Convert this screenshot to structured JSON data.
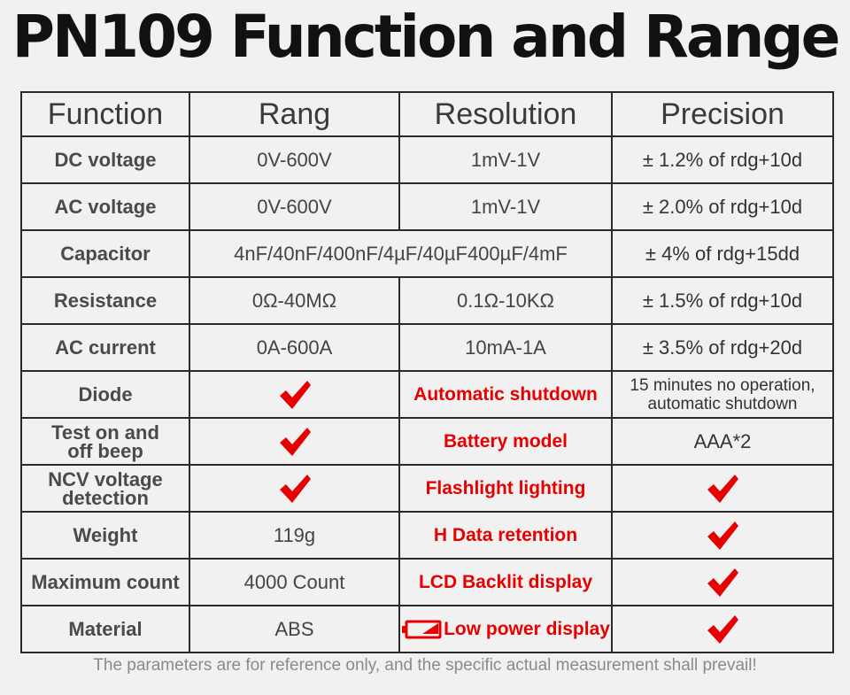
{
  "title": "PN109 Function and Range",
  "headers": {
    "function": "Function",
    "range": "Rang",
    "resolution": "Resolution",
    "precision": "Precision"
  },
  "rows": {
    "dc_voltage": {
      "function": "DC voltage",
      "range": "0V-600V",
      "resolution": "1mV-1V",
      "precision": "± 1.2% of rdg+10d"
    },
    "ac_voltage": {
      "function": "AC voltage",
      "range": "0V-600V",
      "resolution": "1mV-1V",
      "precision": "± 2.0% of rdg+10d"
    },
    "capacitor": {
      "function": "Capacitor",
      "range": "4nF/40nF/400nF/4µF/40µF400µF/4mF",
      "precision": "± 4% of rdg+15dd"
    },
    "resistance": {
      "function": "Resistance",
      "range": "0Ω-40MΩ",
      "resolution": "0.1Ω-10KΩ",
      "precision": "± 1.5% of rdg+10d"
    },
    "ac_current": {
      "function": "AC current",
      "range": "0A-600A",
      "resolution": "10mA-1A",
      "precision": "± 3.5% of rdg+20d"
    },
    "diode": {
      "function": "Diode",
      "feature": "Automatic shutdown",
      "feature_value_line1": "15 minutes no operation,",
      "feature_value_line2": "automatic shutdown"
    },
    "beep": {
      "function_line1": "Test on and",
      "function_line2": "off beep",
      "feature": "Battery model",
      "feature_value": "AAA*2"
    },
    "ncv": {
      "function_line1": "NCV voltage",
      "function_line2": "detection",
      "feature": "Flashlight lighting"
    },
    "weight": {
      "function": "Weight",
      "value": "119g",
      "feature_prefix": "H",
      "feature": "Data retention"
    },
    "max_count": {
      "function": "Maximum count",
      "value": "4000 Count",
      "feature_prefix": "LCD",
      "feature": "Backlit display"
    },
    "material": {
      "function": "Material",
      "value": "ABS",
      "feature": "Low power display"
    }
  },
  "icons": {
    "check": "checkmark-icon",
    "battery": "battery-low-icon"
  },
  "colors": {
    "accent_red": "#e60000",
    "grid": "#2a2a2a",
    "background": "#f1f1f1"
  },
  "footer_note": "The parameters are for reference only, and the specific actual measurement shall prevail!"
}
